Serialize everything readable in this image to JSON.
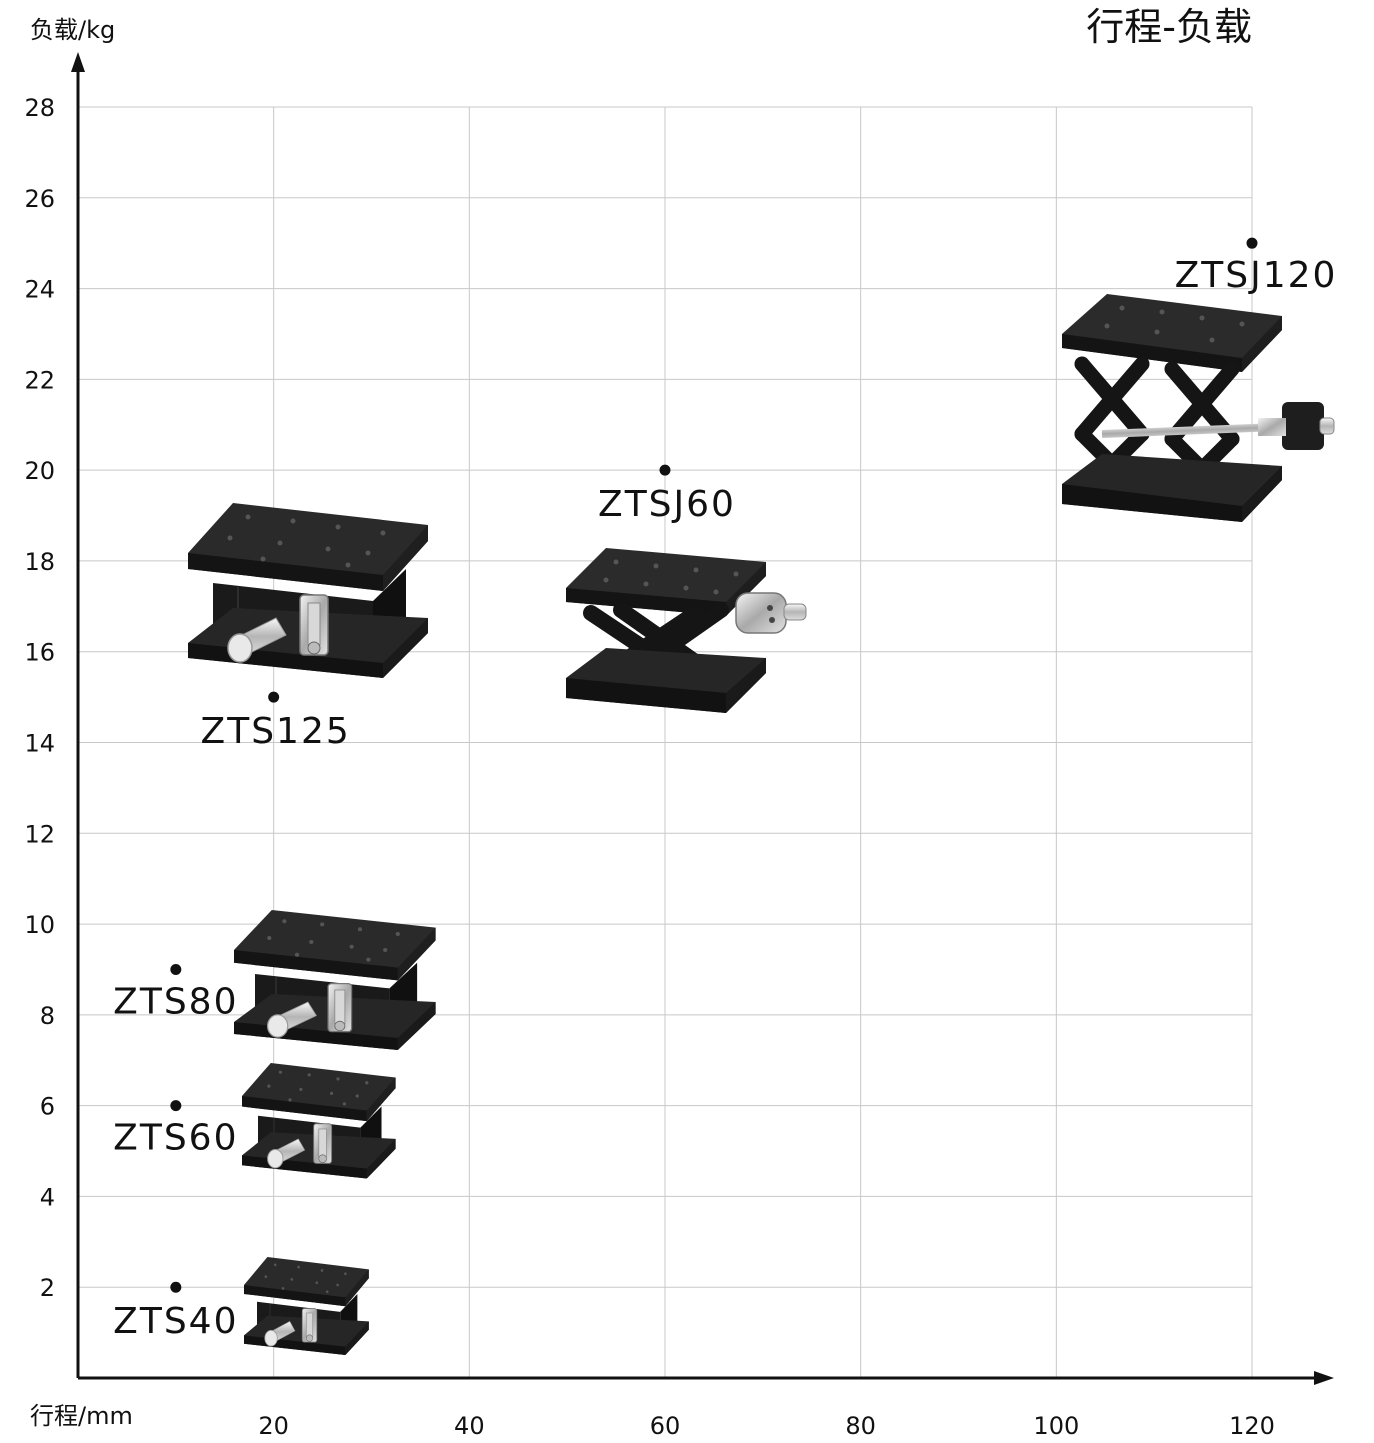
{
  "chart_data": {
    "type": "scatter",
    "title": "行程-负载",
    "xlabel": "行程/mm",
    "ylabel": "负载/kg",
    "xlim": [
      0,
      120
    ],
    "ylim": [
      0,
      28
    ],
    "xticks": [
      "20",
      "40",
      "60",
      "80",
      "100",
      "120"
    ],
    "yticks": [
      "2",
      "4",
      "6",
      "8",
      "10",
      "12",
      "14",
      "16",
      "18",
      "20",
      "22",
      "24",
      "26",
      "28"
    ],
    "grid": true,
    "marker_color": "#111111",
    "points": [
      {
        "label": "ZTS40",
        "x": 10,
        "y": 2
      },
      {
        "label": "ZTS60",
        "x": 10,
        "y": 6
      },
      {
        "label": "ZTS80",
        "x": 10,
        "y": 9
      },
      {
        "label": "ZTS125",
        "x": 20,
        "y": 15
      },
      {
        "label": "ZTSJ60",
        "x": 60,
        "y": 20
      },
      {
        "label": "ZTSJ120",
        "x": 120,
        "y": 25
      }
    ]
  },
  "product_images": [
    "ZTS40 stage",
    "ZTS60 stage",
    "ZTS80 stage",
    "ZTS125 stage",
    "ZTSJ60 scissor stage",
    "ZTSJ120 scissor stage"
  ]
}
